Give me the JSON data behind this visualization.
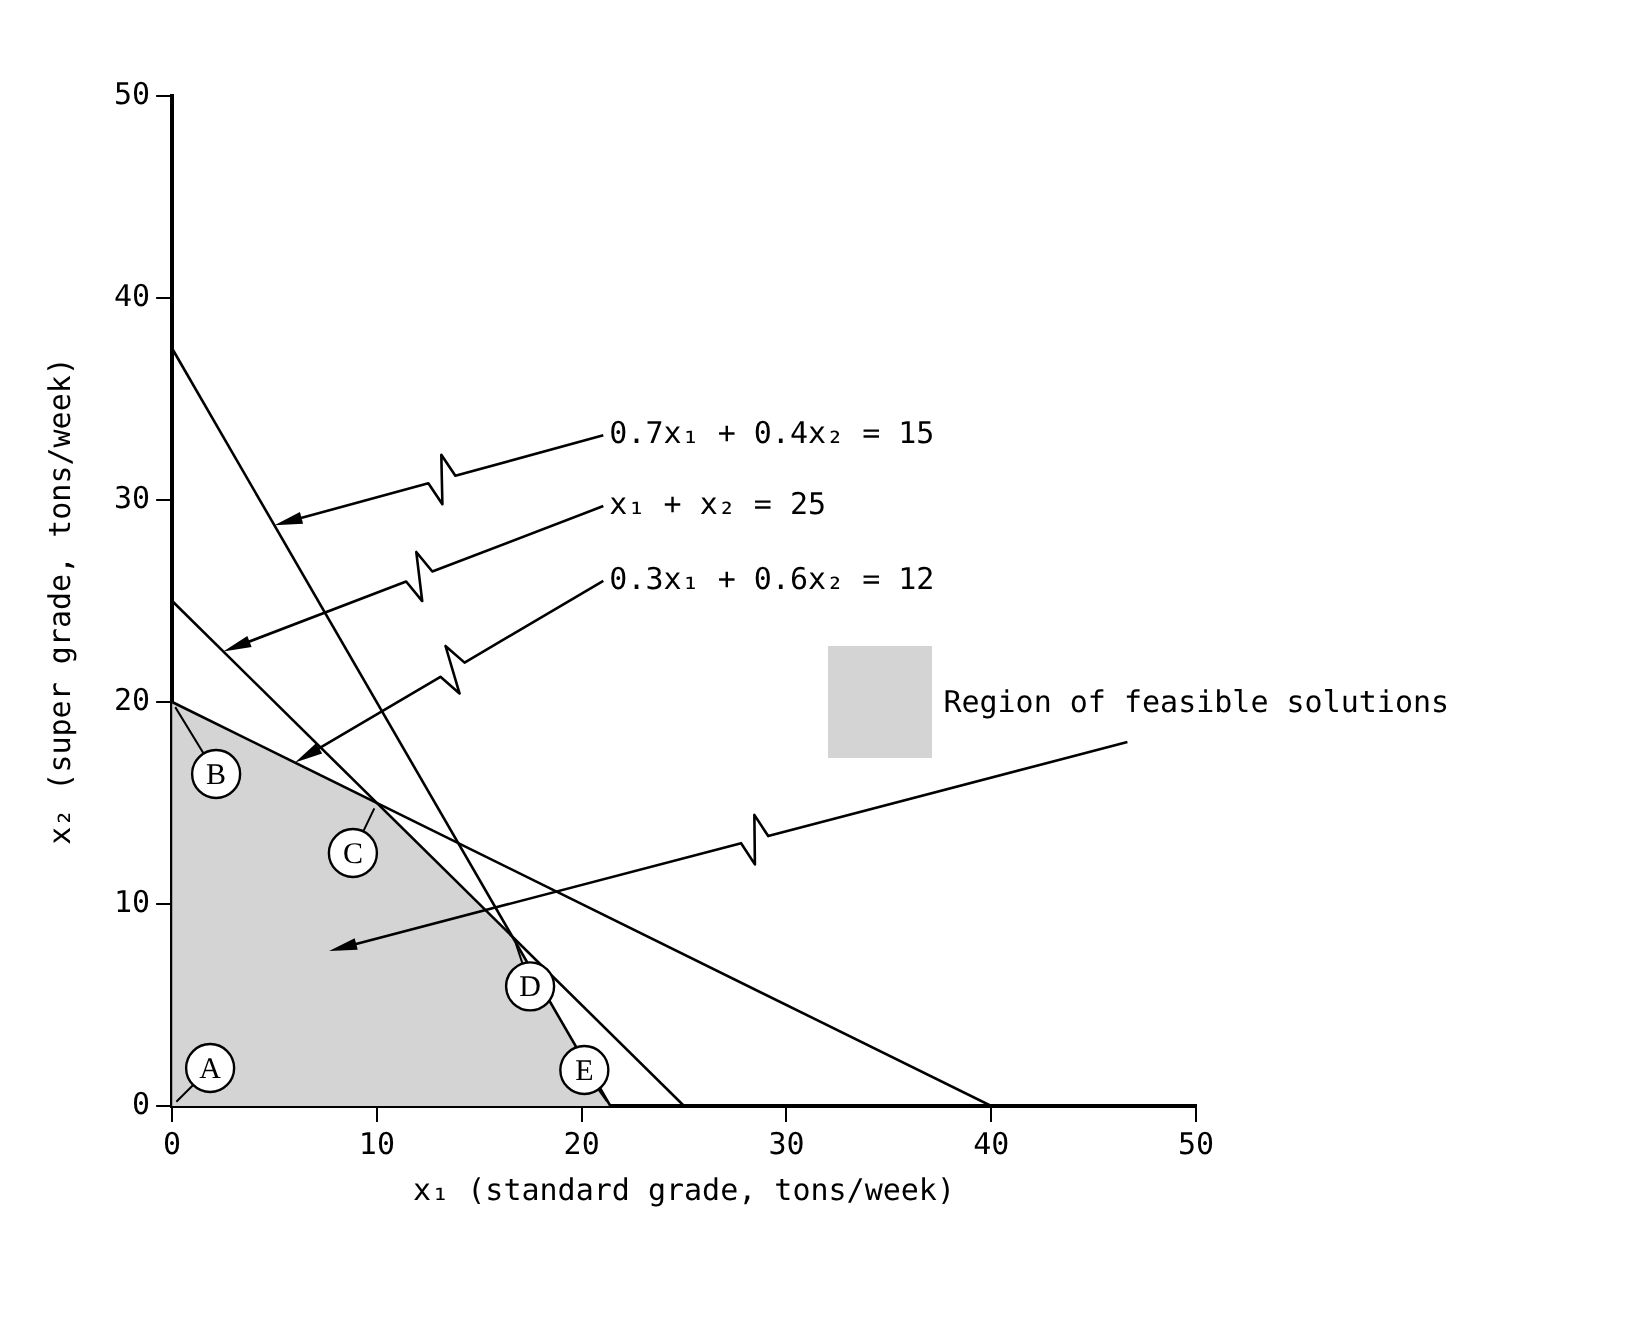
{
  "chart_data": {
    "type": "line",
    "xlabel": "x₁ (standard grade, tons/week)",
    "ylabel": "x₂ (super grade, tons/week)",
    "xlim": [
      0,
      50
    ],
    "xticks": [
      0,
      10,
      20,
      30,
      40,
      50
    ],
    "ylim": [
      0,
      50
    ],
    "yticks": [
      0,
      10,
      20,
      30,
      40,
      50
    ],
    "grid": false,
    "marker": "none",
    "line_style": "solid",
    "legend": "right",
    "series": [
      {
        "type": "line",
        "color": "#000000",
        "x": [
          0,
          21.4
        ],
        "values": [
          37.5,
          0
        ]
      },
      {
        "type": "line",
        "color": "#000000",
        "x": [
          0,
          25
        ],
        "values": [
          25,
          0
        ]
      },
      {
        "type": "line",
        "color": "#000000",
        "x": [
          0,
          40
        ],
        "values": [
          20,
          0
        ]
      },
      {
        "type": "area",
        "name": "Region of feasible solutions",
        "color": "#d4d4d4",
        "x": [
          0,
          10,
          16.7,
          21.4
        ],
        "values": [
          20,
          15,
          8.3,
          0
        ]
      }
    ],
    "annotations": [
      {
        "text": "0.7x₁ + 0.4x₂ = 15",
        "x": 5,
        "y": 28.75
      },
      {
        "text": "x₁ + x₂ = 25",
        "x": 2.5,
        "y": 22.5
      },
      {
        "text": "0.3x₁ + 0.6x₂ = 12",
        "x": 6,
        "y": 17
      },
      {
        "text": "A",
        "x": 0,
        "y": 0
      },
      {
        "text": "B",
        "x": 0,
        "y": 20
      },
      {
        "text": "C",
        "x": 10,
        "y": 15
      },
      {
        "text": "D",
        "x": 16.7,
        "y": 8.3
      },
      {
        "text": "E",
        "x": 21.4,
        "y": 0
      }
    ]
  }
}
